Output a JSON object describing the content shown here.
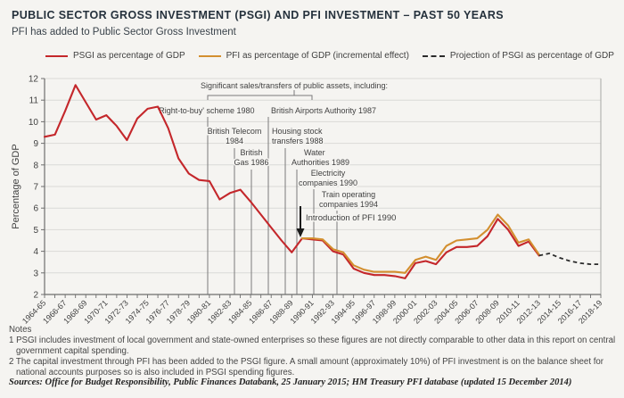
{
  "page": {
    "title": "PUBLIC SECTOR GROSS INVESTMENT (PSGI) AND PFI INVESTMENT – PAST 50 YEARS",
    "subtitle": "PFI has added to Public Sector Gross Investment"
  },
  "legend": {
    "items": [
      {
        "label": "PSGI as percentage of GDP",
        "color": "#c4272b",
        "dashed": false
      },
      {
        "label": "PFI as percentage of GDP (incremental effect)",
        "color": "#d38f2f",
        "dashed": false
      },
      {
        "label": "Projection of PSGI as percentage of GDP",
        "color": "#2b2b2b",
        "dashed": true
      }
    ]
  },
  "chart_data": {
    "type": "line",
    "title": "PUBLIC SECTOR GROSS INVESTMENT (PSGI) AND PFI INVESTMENT – PAST 50 YEARS",
    "xlabel": "",
    "ylabel": "Percentage of GDP",
    "ylim": [
      2,
      12
    ],
    "yticks": [
      2,
      3,
      4,
      5,
      6,
      7,
      8,
      9,
      10,
      11,
      12
    ],
    "grid": true,
    "legend_position": "top",
    "x_start_year": 1964,
    "x_end_year": 2018,
    "xtick_labels": [
      "1964-65",
      "1966-67",
      "1968-69",
      "1970-71",
      "1972-73",
      "1974-75",
      "1976-77",
      "1978-79",
      "1980-81",
      "1982-83",
      "1984-85",
      "1986-87",
      "1988-89",
      "1990-91",
      "1992-93",
      "1994-95",
      "1996-97",
      "1998-99",
      "2000-01",
      "2002-03",
      "2004-05",
      "2006-07",
      "2008-09",
      "2010-11",
      "2012-13",
      "2014-15",
      "2016-17",
      "2018-19"
    ],
    "series": [
      {
        "name": "PSGI as percentage of GDP",
        "color": "#c4272b",
        "dashed": false,
        "start_year": 1964,
        "values": [
          9.3,
          9.4,
          10.5,
          11.7,
          10.9,
          10.1,
          10.3,
          9.8,
          9.15,
          10.15,
          10.6,
          10.7,
          9.7,
          8.3,
          7.6,
          7.3,
          7.25,
          6.4,
          6.7,
          6.85,
          6.3,
          5.7,
          5.1,
          4.5,
          3.95,
          4.6,
          4.55,
          4.5,
          4.0,
          3.85,
          3.2,
          3.0,
          2.9,
          2.9,
          2.85,
          2.75,
          3.45,
          3.55,
          3.4,
          3.95,
          4.2,
          4.2,
          4.25,
          4.7,
          5.5,
          5.0,
          4.25,
          4.45,
          3.8
        ]
      },
      {
        "name": "PFI as percentage of GDP (incremental effect)",
        "color": "#d38f2f",
        "dashed": false,
        "start_year": 1989,
        "values": [
          4.6,
          4.6,
          4.55,
          4.1,
          3.95,
          3.35,
          3.15,
          3.05,
          3.05,
          3.05,
          3.0,
          3.6,
          3.75,
          3.6,
          4.25,
          4.5,
          4.55,
          4.6,
          5.0,
          5.7,
          5.2,
          4.4,
          4.55,
          3.85
        ]
      },
      {
        "name": "Projection of PSGI as percentage of GDP",
        "color": "#2b2b2b",
        "dashed": true,
        "start_year": 2012,
        "values": [
          3.8,
          3.9,
          3.7,
          3.55,
          3.45,
          3.4,
          3.4
        ]
      }
    ],
    "annotations": {
      "group_label": "Significant sales/transfers of public assets, including:",
      "events": [
        {
          "year": 1980,
          "lines": [
            "'Right-to-buy' scheme 1980"
          ]
        },
        {
          "year": 1984,
          "lines": [
            "British Telecom",
            "1984"
          ]
        },
        {
          "year": 1986,
          "lines": [
            "British",
            "Gas 1986"
          ]
        },
        {
          "year": 1987,
          "lines": [
            "British Airports Authority 1987"
          ]
        },
        {
          "year": 1988,
          "lines": [
            "Housing stock",
            "transfers 1988"
          ]
        },
        {
          "year": 1989,
          "lines": [
            "Water",
            "Authorities 1989"
          ]
        },
        {
          "year": 1990,
          "lines": [
            "Electricity",
            "companies 1990"
          ]
        },
        {
          "year": 1994,
          "lines": [
            "Train operating",
            "companies 1994"
          ]
        }
      ],
      "arrow_label": "Introduction of PFI 1990"
    }
  },
  "notes": {
    "heading": "Notes",
    "items": [
      "1 PSGI includes investment of local government and state-owned enterprises so these figures are not directly comparable to other data in this report on central government capital spending.",
      "2 The capital investment through PFI has been added to the PSGI figure. A small amount (approximately 10%) of PFI investment is on the balance sheet for national accounts purposes so is also included in PSGI spending figures."
    ],
    "sources": "Sources: Office for Budget Responsibility, Public Finances Databank, 25 January 2015; HM Treasury PFI database (updated 15 December 2014)"
  }
}
